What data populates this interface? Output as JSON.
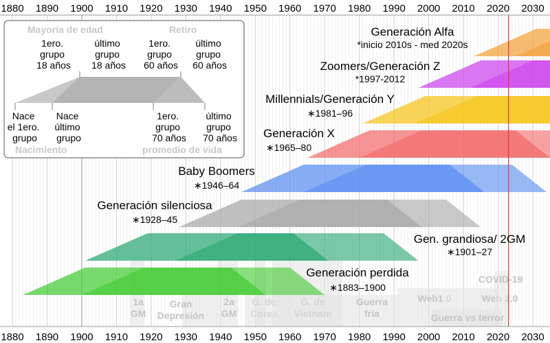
{
  "axis": {
    "years": [
      "1880",
      "1890",
      "1900",
      "1910",
      "1920",
      "1930",
      "1940",
      "1950",
      "1960",
      "1970",
      "1980",
      "1990",
      "2000",
      "2010",
      "2020",
      "2030"
    ]
  },
  "legend": {
    "mayoria": "Mayoría de edad",
    "retiro": "Retiro",
    "nacimiento": "Nacimiento",
    "promedio": "promedio de vida",
    "first_group_18": [
      "1ero.",
      "grupo",
      "18 años"
    ],
    "last_group_18": [
      "último",
      "grupo",
      "18 años"
    ],
    "first_group_60": [
      "1ero.",
      "grupo",
      "60 años"
    ],
    "last_group_60": [
      "último",
      "grupo",
      "60 años"
    ],
    "born_first": [
      "Nace",
      "el 1ero.",
      "grupo"
    ],
    "born_last": [
      "Nace",
      "último",
      "grupo"
    ],
    "first_group_70": [
      "1ero.",
      "grupo",
      "70 años"
    ],
    "last_group_70": [
      "último",
      "grupo",
      "70 años"
    ]
  },
  "events": [
    {
      "label": [
        "1a",
        "GM"
      ]
    },
    {
      "label": [
        "Gran",
        "Depresión"
      ]
    },
    {
      "label": [
        "2a",
        "GM"
      ]
    },
    {
      "label": [
        "G. de",
        "Corea"
      ]
    },
    {
      "label": [
        "G. de",
        "Vietnam"
      ]
    },
    {
      "label": [
        "Guerra",
        "fría"
      ]
    },
    {
      "label": [
        "Web1.0"
      ]
    },
    {
      "label": [
        "Web 2.0"
      ]
    },
    {
      "label": [
        "COVID-19"
      ]
    },
    {
      "label": [
        "Guerra vs terror"
      ]
    }
  ],
  "chart_data": {
    "type": "timeline",
    "x_range": [
      1880,
      2035
    ],
    "current_year_marker": 2023,
    "generations": [
      {
        "name": "Generación Alfa",
        "years_label": "*inicio 2010s - med 2020s",
        "birth_start": 2013,
        "birth_end": 2025,
        "color": "#f2a23c"
      },
      {
        "name": "Zoomers/Generación Z",
        "years_label": "*1997-2012",
        "birth_start": 1997,
        "birth_end": 2012,
        "color": "#cc44ee"
      },
      {
        "name": "Millennials/Generación Y",
        "years_label": "∗1981–96",
        "birth_start": 1981,
        "birth_end": 1996,
        "color": "#f5c518"
      },
      {
        "name": "Generación X",
        "years_label": "∗1965–80",
        "birth_start": 1965,
        "birth_end": 1980,
        "color": "#f26b6b"
      },
      {
        "name": "Baby Boomers",
        "years_label": "∗1946–64",
        "birth_start": 1946,
        "birth_end": 1964,
        "color": "#5a8ef0"
      },
      {
        "name": "Generación silenciosa",
        "years_label": "∗1928–45",
        "birth_start": 1928,
        "birth_end": 1945,
        "color": "#a8a8a8"
      },
      {
        "name": "Gen. grandiosa/ 2GM",
        "years_label": "∗1901–27",
        "birth_start": 1901,
        "birth_end": 1927,
        "color": "#2aa872"
      },
      {
        "name": "Generación perdida",
        "years_label": "∗1883–1900",
        "birth_start": 1883,
        "birth_end": 1900,
        "color": "#44cc33"
      }
    ]
  }
}
